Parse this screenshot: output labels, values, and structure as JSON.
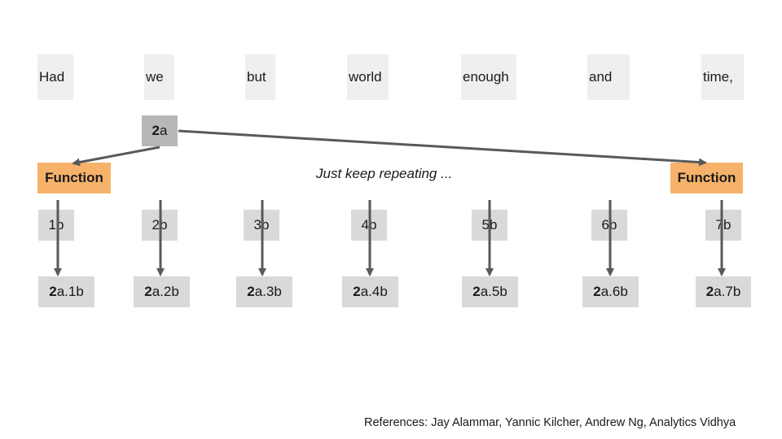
{
  "words": [
    "Had",
    "we",
    "but",
    "world",
    "enough",
    "and",
    "time,"
  ],
  "query": {
    "bold": "2",
    "suffix": "a"
  },
  "functions": [
    "Function",
    "Function"
  ],
  "note": "Just keep repeating ...",
  "b_labels": [
    "1b",
    "2b",
    "3b",
    "4b",
    "5b",
    "6b",
    "7b"
  ],
  "results": [
    {
      "bold": "2",
      "suffix": "a.1b"
    },
    {
      "bold": "2",
      "suffix": "a.2b"
    },
    {
      "bold": "2",
      "suffix": "a.3b"
    },
    {
      "bold": "2",
      "suffix": "a.4b"
    },
    {
      "bold": "2",
      "suffix": "a.5b"
    },
    {
      "bold": "2",
      "suffix": "a.6b"
    },
    {
      "bold": "2",
      "suffix": "a.7b"
    }
  ],
  "references": "References: Jay Alammar, Yannic Kilcher, Andrew Ng, Analytics Vidhya",
  "colors": {
    "word_box": "#efefef",
    "query_box": "#b7b7b7",
    "function_box": "#f6b26b",
    "value_box": "#d9d9d9",
    "arrow": "#595959"
  }
}
